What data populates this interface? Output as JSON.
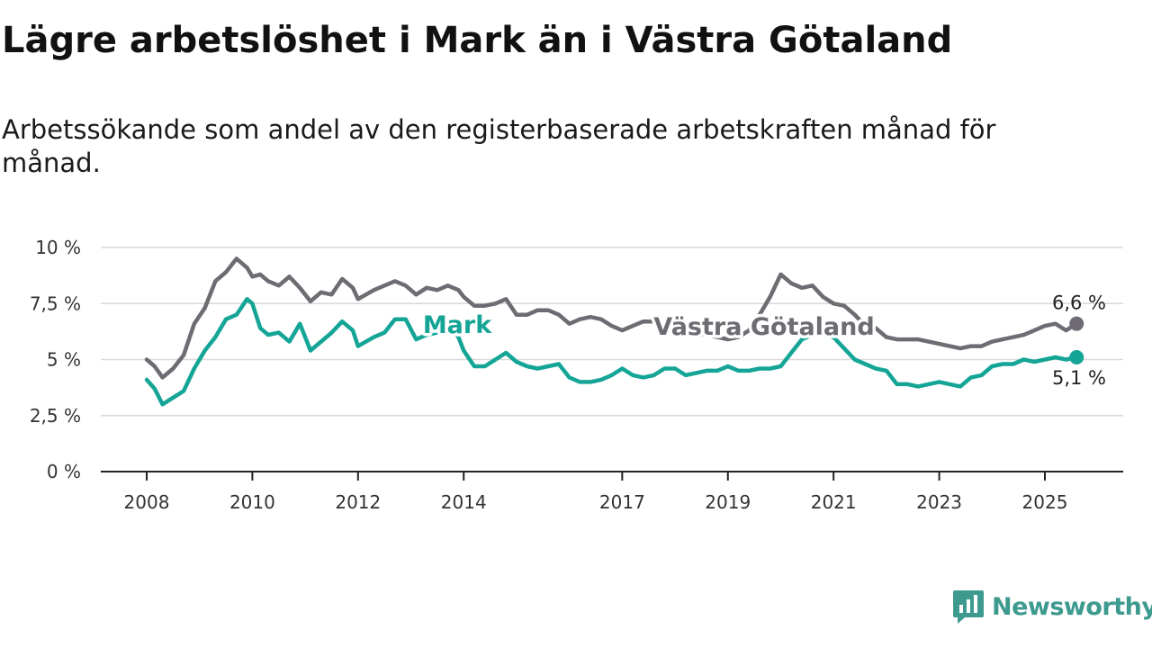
{
  "chart_data": {
    "type": "line",
    "title": "Lägre arbetslöshet i Mark än i Västra Götaland",
    "subtitle": "Arbetssökande som andel av den registerbaserade arbetskraften månad för månad.",
    "y_ticks": [
      "0 %",
      "2,5 %",
      "5 %",
      "7,5 %",
      "10 %"
    ],
    "y_tick_values": [
      0,
      2.5,
      5,
      7.5,
      10
    ],
    "ylim": [
      0,
      10
    ],
    "x_ticks": [
      "2008",
      "2010",
      "2012",
      "2014",
      "2017",
      "2019",
      "2021",
      "2023",
      "2025"
    ],
    "x_tick_values": [
      2008,
      2010,
      2012,
      2014,
      2017,
      2019,
      2021,
      2023,
      2025
    ],
    "xlim": [
      2007.2,
      2026.5
    ],
    "grid": true,
    "series": [
      {
        "name": "Västra Götaland",
        "color": "#6e6b72",
        "end_label": "6,6 %",
        "x": [
          2008.0,
          2008.15,
          2008.3,
          2008.5,
          2008.7,
          2008.9,
          2009.1,
          2009.3,
          2009.5,
          2009.7,
          2009.9,
          2010.0,
          2010.15,
          2010.3,
          2010.5,
          2010.7,
          2010.9,
          2011.1,
          2011.3,
          2011.5,
          2011.7,
          2011.9,
          2012.0,
          2012.15,
          2012.3,
          2012.5,
          2012.7,
          2012.9,
          2013.1,
          2013.3,
          2013.5,
          2013.7,
          2013.9,
          2014.0,
          2014.2,
          2014.4,
          2014.6,
          2014.8,
          2015.0,
          2015.2,
          2015.4,
          2015.6,
          2015.8,
          2016.0,
          2016.2,
          2016.4,
          2016.6,
          2016.8,
          2017.0,
          2017.2,
          2017.4,
          2017.6,
          2017.8,
          2018.0,
          2018.2,
          2018.4,
          2018.6,
          2018.8,
          2019.0,
          2019.2,
          2019.4,
          2019.6,
          2019.8,
          2020.0,
          2020.2,
          2020.4,
          2020.6,
          2020.8,
          2021.0,
          2021.2,
          2021.4,
          2021.6,
          2021.8,
          2022.0,
          2022.2,
          2022.4,
          2022.6,
          2022.8,
          2023.0,
          2023.2,
          2023.4,
          2023.6,
          2023.8,
          2024.0,
          2024.2,
          2024.4,
          2024.6,
          2024.8,
          2025.0,
          2025.2,
          2025.4,
          2025.6
        ],
        "y": [
          5.0,
          4.7,
          4.2,
          4.6,
          5.2,
          6.6,
          7.3,
          8.5,
          8.9,
          9.5,
          9.1,
          8.7,
          8.8,
          8.5,
          8.3,
          8.7,
          8.2,
          7.6,
          8.0,
          7.9,
          8.6,
          8.2,
          7.7,
          7.9,
          8.1,
          8.3,
          8.5,
          8.3,
          7.9,
          8.2,
          8.1,
          8.3,
          8.1,
          7.8,
          7.4,
          7.4,
          7.5,
          7.7,
          7.0,
          7.0,
          7.2,
          7.2,
          7.0,
          6.6,
          6.8,
          6.9,
          6.8,
          6.5,
          6.3,
          6.5,
          6.7,
          6.7,
          6.6,
          6.2,
          6.2,
          6.2,
          6.1,
          6.0,
          5.9,
          6.0,
          6.3,
          7.0,
          7.8,
          8.8,
          8.4,
          8.2,
          8.3,
          7.8,
          7.5,
          7.4,
          7.0,
          6.5,
          6.4,
          6.0,
          5.9,
          5.9,
          5.9,
          5.8,
          5.7,
          5.6,
          5.5,
          5.6,
          5.6,
          5.8,
          5.9,
          6.0,
          6.1,
          6.3,
          6.5,
          6.6,
          6.3,
          6.6
        ]
      },
      {
        "name": "Mark",
        "color": "#14a596",
        "end_label": "5,1 %",
        "x": [
          2008.0,
          2008.15,
          2008.3,
          2008.5,
          2008.7,
          2008.9,
          2009.1,
          2009.3,
          2009.5,
          2009.7,
          2009.9,
          2010.0,
          2010.15,
          2010.3,
          2010.5,
          2010.7,
          2010.9,
          2011.1,
          2011.3,
          2011.5,
          2011.7,
          2011.9,
          2012.0,
          2012.15,
          2012.3,
          2012.5,
          2012.7,
          2012.9,
          2013.1,
          2013.3,
          2013.5,
          2013.7,
          2013.9,
          2014.0,
          2014.2,
          2014.4,
          2014.6,
          2014.8,
          2015.0,
          2015.2,
          2015.4,
          2015.6,
          2015.8,
          2016.0,
          2016.2,
          2016.4,
          2016.6,
          2016.8,
          2017.0,
          2017.2,
          2017.4,
          2017.6,
          2017.8,
          2018.0,
          2018.2,
          2018.4,
          2018.6,
          2018.8,
          2019.0,
          2019.2,
          2019.4,
          2019.6,
          2019.8,
          2020.0,
          2020.2,
          2020.4,
          2020.6,
          2020.8,
          2021.0,
          2021.2,
          2021.4,
          2021.6,
          2021.8,
          2022.0,
          2022.2,
          2022.4,
          2022.6,
          2022.8,
          2023.0,
          2023.2,
          2023.4,
          2023.6,
          2023.8,
          2024.0,
          2024.2,
          2024.4,
          2024.6,
          2024.8,
          2025.0,
          2025.2,
          2025.4,
          2025.6
        ],
        "y": [
          4.1,
          3.7,
          3.0,
          3.3,
          3.6,
          4.6,
          5.4,
          6.0,
          6.8,
          7.0,
          7.7,
          7.5,
          6.4,
          6.1,
          6.2,
          5.8,
          6.6,
          5.4,
          5.8,
          6.2,
          6.7,
          6.3,
          5.6,
          5.8,
          6.0,
          6.2,
          6.8,
          6.8,
          5.9,
          6.1,
          6.2,
          6.6,
          6.0,
          5.4,
          4.7,
          4.7,
          5.0,
          5.3,
          4.9,
          4.7,
          4.6,
          4.7,
          4.8,
          4.2,
          4.0,
          4.0,
          4.1,
          4.3,
          4.6,
          4.3,
          4.2,
          4.3,
          4.6,
          4.6,
          4.3,
          4.4,
          4.5,
          4.5,
          4.7,
          4.5,
          4.5,
          4.6,
          4.6,
          4.7,
          5.3,
          5.9,
          6.1,
          6.1,
          6.0,
          5.5,
          5.0,
          4.8,
          4.6,
          4.5,
          3.9,
          3.9,
          3.8,
          3.9,
          4.0,
          3.9,
          3.8,
          4.2,
          4.3,
          4.7,
          4.8,
          4.8,
          5.0,
          4.9,
          5.0,
          5.1,
          5.0,
          5.1
        ]
      }
    ]
  },
  "brand": {
    "name": "Newsworthy",
    "icon": "newsworthy-logo-icon",
    "color": "#3e9a8f"
  }
}
